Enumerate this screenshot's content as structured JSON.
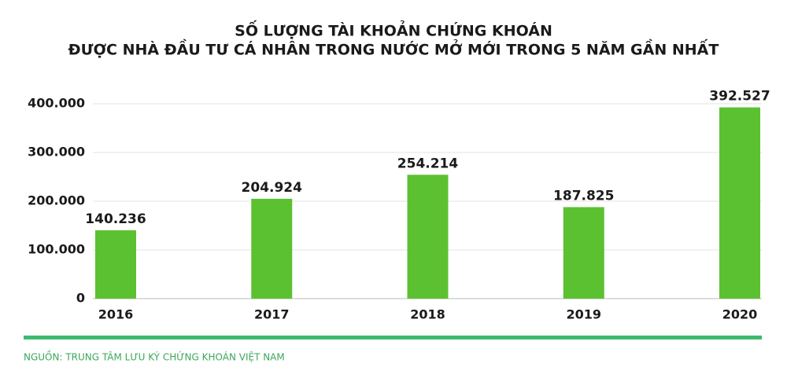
{
  "chart_data": {
    "type": "bar",
    "title": "SỐ LƯỢNG TÀI KHOẢN CHỨNG KHOÁN",
    "subtitle": "ĐƯỢC NHÀ ĐẦU TƯ CÁ NHÂN TRONG NƯỚC MỞ MỚI TRONG 5 NĂM GẦN NHẤT",
    "categories": [
      "2016",
      "2017",
      "2018",
      "2019",
      "2020"
    ],
    "values": [
      140236,
      204924,
      254214,
      187825,
      392527
    ],
    "value_labels": [
      "140.236",
      "204.924",
      "254.214",
      "187.825",
      "392.527"
    ],
    "color": "#5cc130",
    "ylim": [
      0,
      400000
    ],
    "yticks": [
      0,
      {
        "value": 100000,
        "label": "100.000"
      },
      {
        "value": 200000,
        "label": "200.000"
      },
      {
        "value": 300000,
        "label": "300.000"
      },
      {
        "value": 400000,
        "label": "400.000"
      }
    ],
    "grid": true,
    "source": "NGUỒN: TRUNG TÂM LƯU KÝ CHỨNG KHOÁN VIỆT NAM"
  }
}
